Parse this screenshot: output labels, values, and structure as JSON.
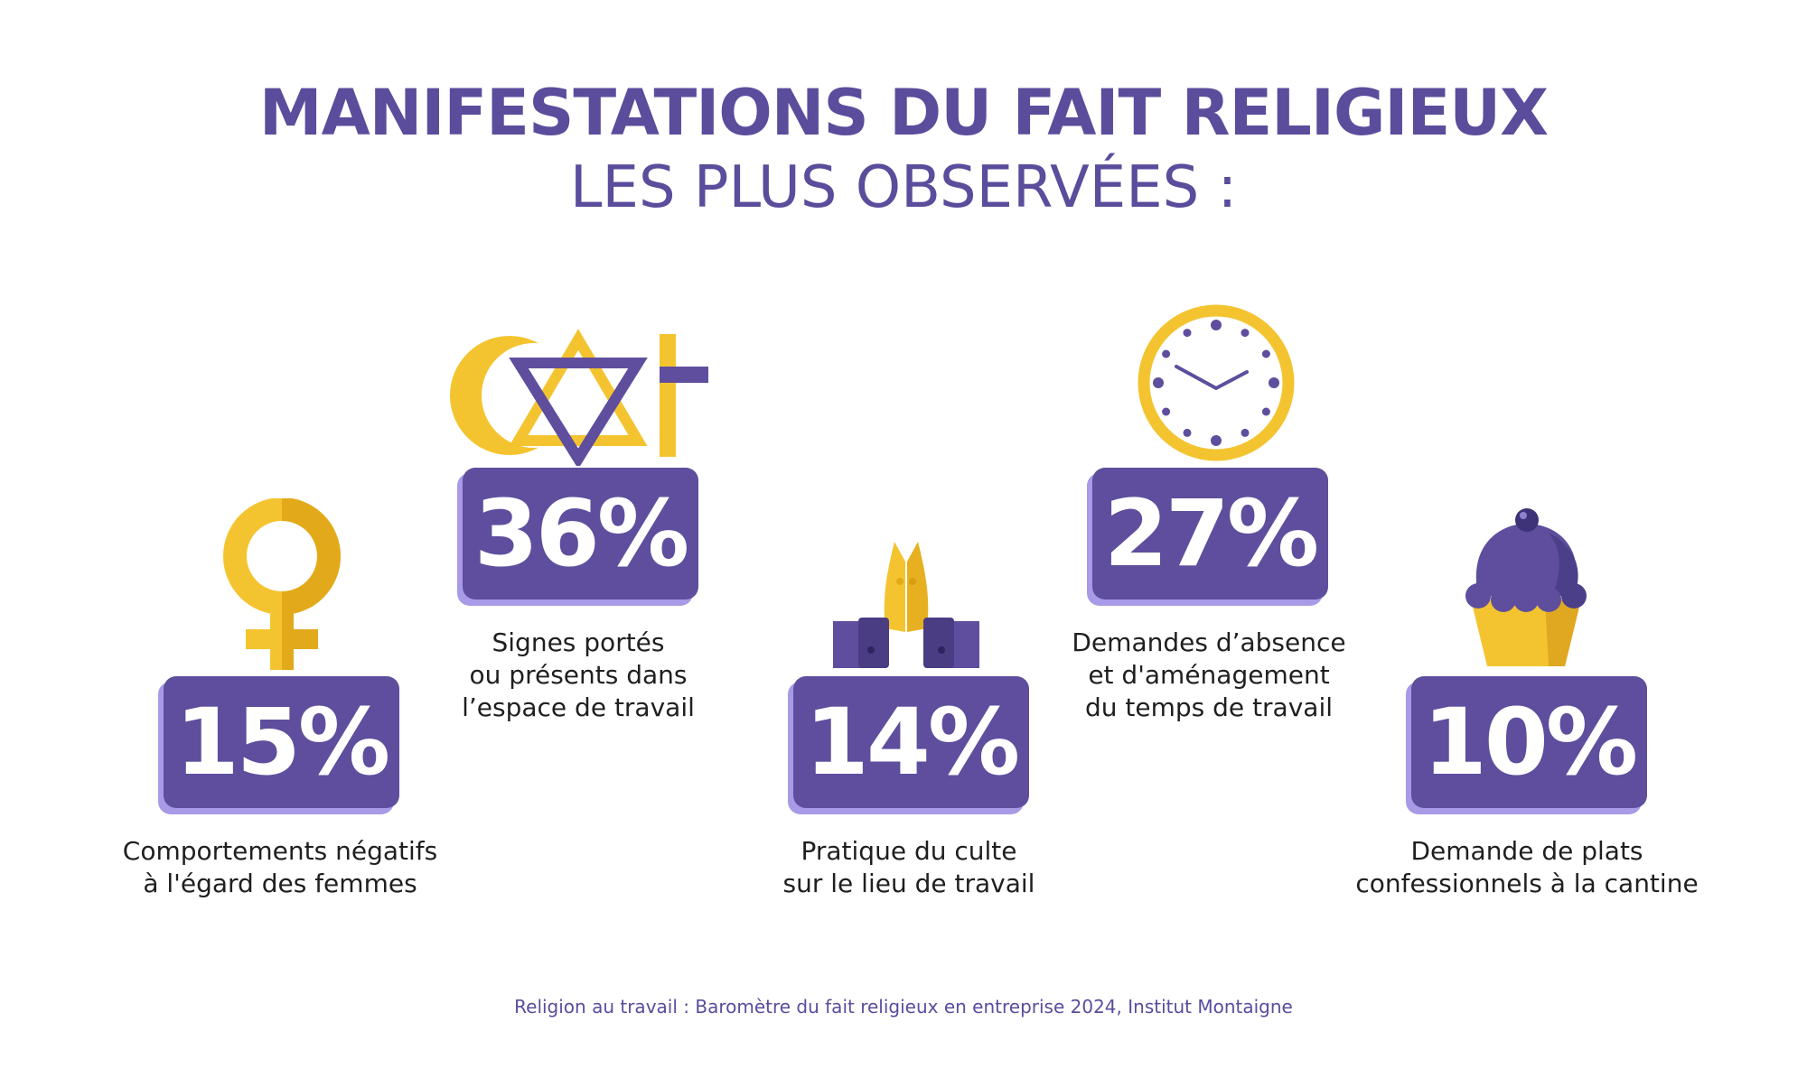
{
  "title": {
    "line1": "MANIFESTATIONS DU FAIT RELIGIEUX",
    "line2": "LES PLUS OBSERVÉES :"
  },
  "colors": {
    "purple": "#5e4e9d",
    "purple_light": "#a89ae6",
    "yellow": "#f4c430",
    "yellow_dark": "#e0a800"
  },
  "items": [
    {
      "value": "15%",
      "icon": "female-symbol-icon",
      "caption": [
        "Comportements négatifs",
        "à l'égard des femmes"
      ]
    },
    {
      "value": "36%",
      "icon": "religious-symbols-icon",
      "caption": [
        "Signes portés",
        "ou présents dans",
        "l’espace de travail"
      ]
    },
    {
      "value": "14%",
      "icon": "praying-hands-icon",
      "caption": [
        "Pratique du culte",
        "sur le lieu de travail"
      ]
    },
    {
      "value": "27%",
      "icon": "clock-icon",
      "caption": [
        "Demandes d’absence",
        "et d'aménagement",
        "du temps de travail"
      ]
    },
    {
      "value": "10%",
      "icon": "cupcake-icon",
      "caption": [
        "Demande de plats",
        "confessionnels à la cantine"
      ]
    }
  ],
  "source": "Religion au travail : Baromètre du fait religieux en entreprise 2024, Institut Montaigne"
}
